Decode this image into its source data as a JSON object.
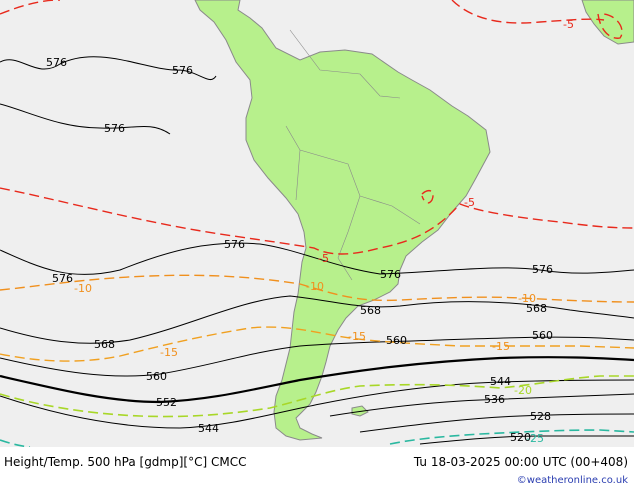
{
  "map": {
    "colors": {
      "ocean": "#efefef",
      "land": "#b7f08c",
      "coast": "#8a8a8a",
      "height_contour": "#000000",
      "temp_minus5": "#e8291c",
      "temp_minus10": "#f0901e",
      "temp_minus15": "#f0a020",
      "temp_minus20": "#a8d728",
      "temp_minus25": "#2ab8a0"
    },
    "height_labels": [
      "576",
      "576",
      "576",
      "576",
      "576",
      "576",
      "576",
      "568",
      "568",
      "568",
      "560",
      "560",
      "560",
      "552",
      "544",
      "544",
      "536",
      "528",
      "520"
    ],
    "temp_labels": [
      "-5",
      "-5",
      "-5",
      "-10",
      "-10",
      "-10",
      "-15",
      "-15",
      "-15",
      "-20",
      "-25"
    ]
  },
  "footer": {
    "title": "Height/Temp. 500 hPa [gdmp][°C] CMCC",
    "valid_time": "Tu 18-03-2025 00:00 UTC (00+408)",
    "credit": "©weatheronline.co.uk"
  }
}
